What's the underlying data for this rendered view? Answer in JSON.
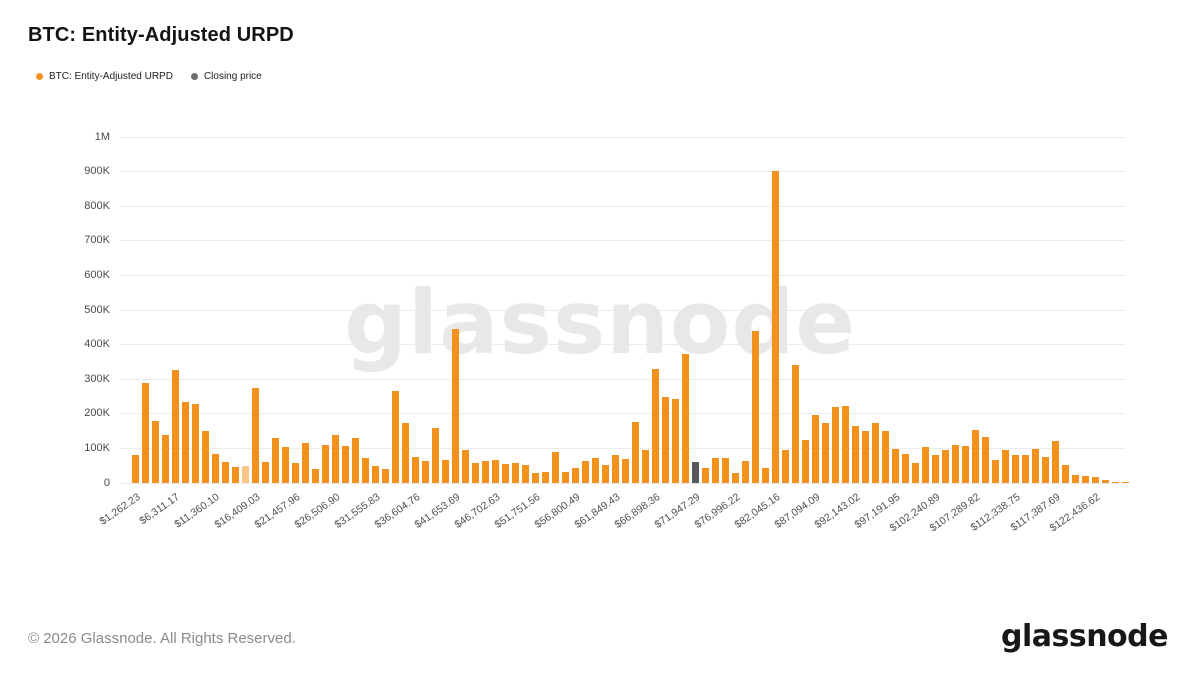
{
  "page": {
    "title": "BTC: Entity-Adjusted URPD"
  },
  "legend": [
    {
      "label": "BTC: Entity-Adjusted URPD",
      "color": "#f2921d"
    },
    {
      "label": "Closing price",
      "color": "#6a6e71"
    }
  ],
  "watermark": "glassnode",
  "footer": {
    "copyright": "© 2026 Glassnode. All Rights Reserved.",
    "logo": "glassnode"
  },
  "chart_data": {
    "type": "bar",
    "title": "BTC: Entity-Adjusted URPD",
    "xlabel": "",
    "ylabel": "",
    "ylim": [
      0,
      1000000
    ],
    "grid": true,
    "legend_position": "top-left",
    "y_ticks": [
      "0",
      "100K",
      "200K",
      "300K",
      "400K",
      "500K",
      "600K",
      "700K",
      "800K",
      "900K",
      "1M"
    ],
    "x_tick_every_n_bars": 4,
    "x_tick_labels": [
      "$1,262.23",
      "$6,311.17",
      "$11,360.10",
      "$16,409.03",
      "$21,457.96",
      "$26,506.90",
      "$31,555.83",
      "$36,604.76",
      "$41,653.69",
      "$46,702.63",
      "$51,751.56",
      "$56,800.49",
      "$61,849.43",
      "$66,898.36",
      "$71,947.29",
      "$76,996.22",
      "$82,045.16",
      "$87,094.09",
      "$92,143.02",
      "$97,191.95",
      "$102,240.89",
      "$107,289.82",
      "$112,338.75",
      "$117,387.69",
      "$122,436.62"
    ],
    "series": [
      {
        "name": "BTC: Entity-Adjusted URPD",
        "values": [
          80000,
          288000,
          178000,
          140000,
          328000,
          233000,
          228000,
          151000,
          85000,
          62000,
          45000,
          50000,
          276000,
          60000,
          129000,
          103000,
          57000,
          115000,
          41000,
          110000,
          140000,
          106000,
          130000,
          72000,
          48000,
          41000,
          267000,
          173000,
          74000,
          65000,
          158000,
          67000,
          446000,
          94000,
          58000,
          63000,
          67000,
          56000,
          58000,
          51000,
          29000,
          31000,
          91000,
          32000,
          43000,
          63000,
          72000,
          51000,
          82000,
          70000,
          175000,
          96000,
          329000,
          248000,
          244000,
          374000,
          60000,
          43000,
          72000,
          71000,
          29000,
          63000,
          438000,
          43000,
          902000,
          96000,
          340000,
          125000,
          197000,
          173000,
          221000,
          224000,
          166000,
          149000,
          173000,
          151000,
          98000,
          84000,
          58000,
          103000,
          82000,
          94000,
          111000,
          106000,
          154000,
          132000,
          67000,
          94000,
          80000,
          82000,
          99000,
          75000,
          120000,
          51000,
          24000,
          21000,
          17000,
          9000,
          4000,
          2000
        ]
      }
    ],
    "closing_price_bar": {
      "index": 56,
      "x_label": "$71,947.29",
      "color": "#55595b"
    },
    "faded_bar_index": 11,
    "colors": {
      "bar": "#f2921d",
      "grid": "#ececec",
      "watermark": "#e8e8e8"
    }
  }
}
